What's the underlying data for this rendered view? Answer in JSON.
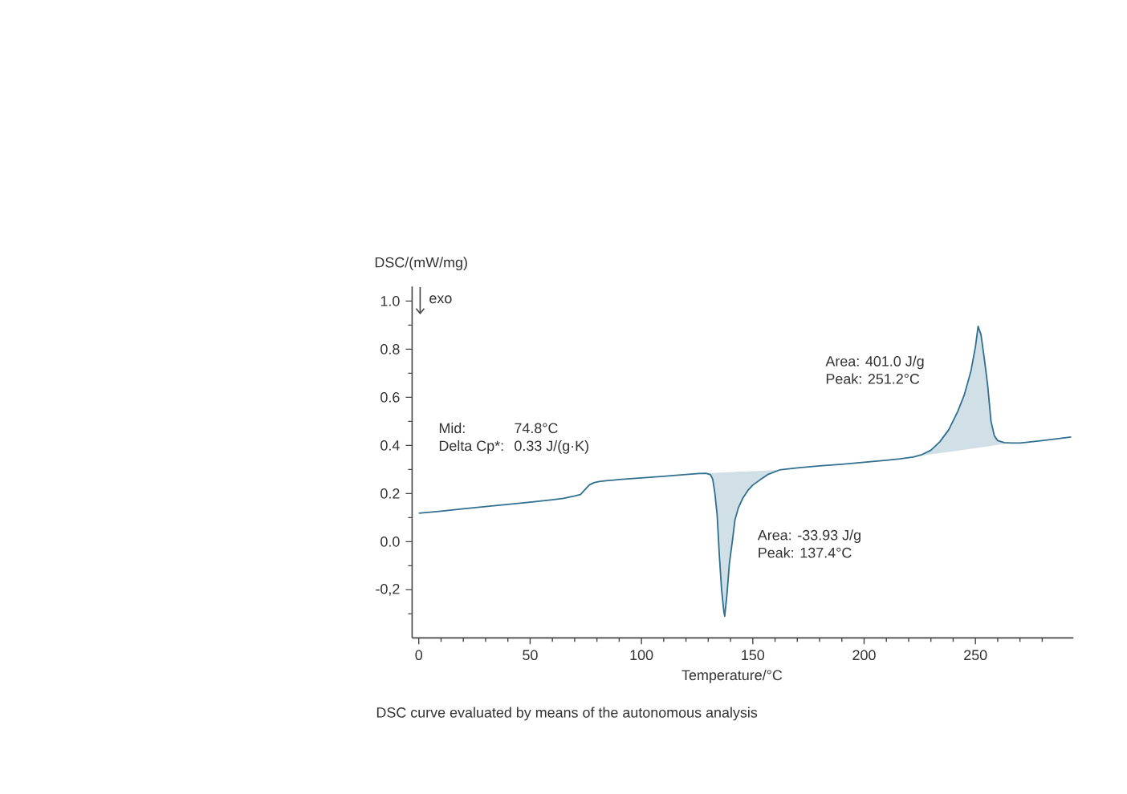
{
  "chart_data": {
    "type": "line",
    "xlabel": "Temperature/°C",
    "ylabel": "DSC/(mW/mg)",
    "annotations": [
      "exo",
      "Mid:",
      "74.8°C",
      "Delta Cp*:",
      "0.33 J/(g·K)",
      "Area:  401.0 J/g",
      "Peak:  251.2°C",
      "Area:  -33.93 J/g",
      "Peak:  137.4°C",
      "DSC curve evaluated by means of the autonomous analysis"
    ],
    "xlim": [
      -3,
      294
    ],
    "ylim": [
      -0.4,
      1.06
    ],
    "xticks": [
      0,
      {
        "value": 10,
        "label": null
      },
      {
        "value": 20,
        "label": null
      },
      {
        "value": 30,
        "label": null
      },
      {
        "value": 40,
        "label": null
      },
      50,
      {
        "value": 60,
        "label": null
      },
      {
        "value": 70,
        "label": null
      },
      {
        "value": 80,
        "label": null
      },
      {
        "value": 90,
        "label": null
      },
      100,
      {
        "value": 110,
        "label": null
      },
      {
        "value": 120,
        "label": null
      },
      {
        "value": 130,
        "label": null
      },
      {
        "value": 140,
        "label": null
      },
      150,
      {
        "value": 160,
        "label": null
      },
      {
        "value": 170,
        "label": null
      },
      {
        "value": 180,
        "label": null
      },
      {
        "value": 190,
        "label": null
      },
      200,
      {
        "value": 210,
        "label": null
      },
      {
        "value": 220,
        "label": null
      },
      {
        "value": 230,
        "label": null
      },
      {
        "value": 240,
        "label": null
      },
      250,
      {
        "value": 260,
        "label": null
      },
      {
        "value": 270,
        "label": null
      },
      {
        "value": 280,
        "label": null
      }
    ],
    "yticks": [
      {
        "value": -0.3,
        "label": null
      },
      {
        "value": -0.2,
        "label": "-0,2"
      },
      {
        "value": -0.1,
        "label": null
      },
      {
        "value": 0,
        "label": "0.0"
      },
      {
        "value": 0.1,
        "label": null
      },
      {
        "value": 0.2,
        "label": "0.2"
      },
      {
        "value": 0.3,
        "label": null
      },
      {
        "value": 0.4,
        "label": "0.4"
      },
      {
        "value": 0.5,
        "label": null
      },
      {
        "value": 0.6,
        "label": "0.6"
      },
      {
        "value": 0.7,
        "label": null
      },
      {
        "value": 0.8,
        "label": "0.8"
      },
      {
        "value": 0.9,
        "label": null
      },
      {
        "value": 1,
        "label": "1.0"
      }
    ],
    "series": [
      {
        "color": "#2f6f8f",
        "x": [
          0,
          10,
          20,
          30,
          40,
          50,
          60,
          65,
          70,
          72.6,
          75,
          76.5,
          78.6,
          81,
          85,
          90,
          100,
          110,
          120,
          126,
          129,
          131,
          132,
          133,
          134,
          135,
          136,
          137,
          137.4,
          138.4,
          139.5,
          140.8,
          142,
          143.5,
          145.5,
          148,
          150,
          153,
          157,
          162,
          170,
          180,
          190,
          200,
          210,
          216,
          222,
          226,
          230,
          234,
          238,
          242,
          245,
          248,
          250,
          251.2,
          252.5,
          254,
          255.5,
          257,
          258.5,
          260,
          263,
          266,
          270,
          280,
          293
        ],
        "values": [
          0.118,
          0.127,
          0.137,
          0.146,
          0.155,
          0.164,
          0.174,
          0.18,
          0.19,
          0.196,
          0.22,
          0.235,
          0.245,
          0.25,
          0.254,
          0.258,
          0.265,
          0.272,
          0.279,
          0.283,
          0.284,
          0.278,
          0.26,
          0.2,
          0.11,
          -0.06,
          -0.2,
          -0.29,
          -0.31,
          -0.22,
          -0.09,
          0.0,
          0.09,
          0.14,
          0.18,
          0.215,
          0.235,
          0.255,
          0.28,
          0.298,
          0.307,
          0.315,
          0.322,
          0.33,
          0.338,
          0.344,
          0.352,
          0.362,
          0.38,
          0.415,
          0.465,
          0.54,
          0.61,
          0.71,
          0.81,
          0.895,
          0.86,
          0.76,
          0.65,
          0.5,
          0.44,
          0.42,
          0.412,
          0.41,
          0.41,
          0.42,
          0.435
        ],
        "lower": [
          null,
          null,
          null,
          null,
          null,
          null,
          null,
          null,
          null,
          null,
          null,
          null,
          null,
          null,
          null,
          null,
          null,
          null,
          null,
          null,
          0.284,
          0.278,
          0.26,
          0.2,
          0.11,
          -0.06,
          -0.2,
          -0.29,
          -0.31,
          -0.22,
          -0.09,
          0.0,
          0.09,
          0.14,
          0.18,
          0.215,
          0.235,
          0.255,
          0.28,
          0.298,
          null,
          null,
          null,
          null,
          null,
          null,
          0.352,
          0.357,
          0.363,
          0.368,
          0.373,
          0.378,
          0.382,
          0.386,
          0.389,
          0.39,
          0.392,
          0.394,
          0.396,
          0.398,
          0.4,
          0.402,
          0.406,
          0.41,
          null,
          null,
          null
        ],
        "upper": [
          null,
          null,
          null,
          null,
          null,
          null,
          null,
          null,
          null,
          null,
          null,
          null,
          null,
          null,
          null,
          null,
          null,
          null,
          null,
          null,
          0.284,
          0.285,
          0.285,
          0.286,
          0.286,
          0.287,
          0.287,
          0.288,
          0.288,
          0.288,
          0.289,
          0.289,
          0.29,
          0.291,
          0.291,
          0.292,
          0.293,
          0.294,
          0.296,
          0.298,
          null,
          null,
          null,
          null,
          null,
          null,
          0.352,
          0.362,
          0.38,
          0.415,
          0.465,
          0.54,
          0.61,
          0.71,
          0.81,
          0.895,
          0.86,
          0.76,
          0.65,
          0.5,
          0.44,
          0.42,
          0.412,
          0.41,
          null,
          null,
          null
        ]
      }
    ]
  }
}
